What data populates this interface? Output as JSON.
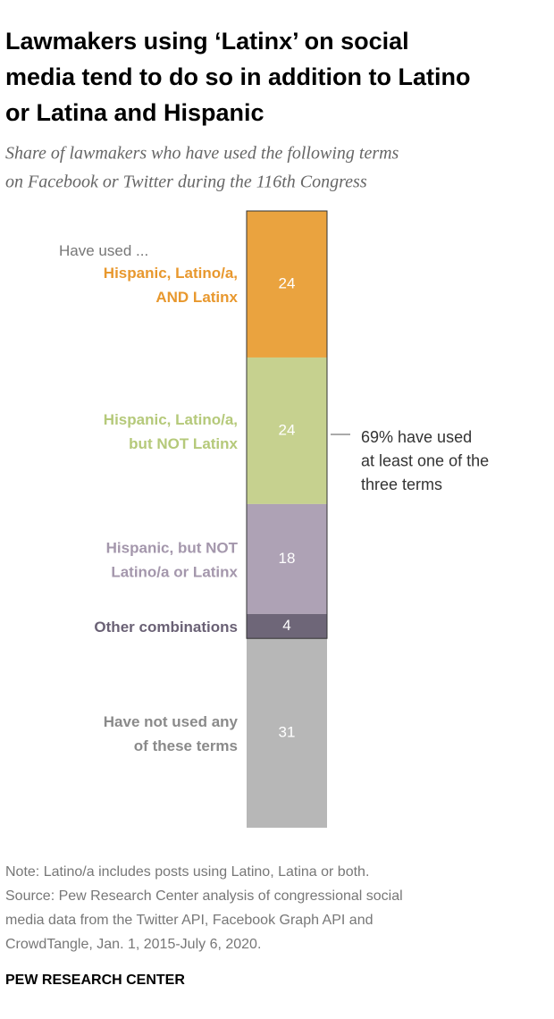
{
  "chart_data": {
    "type": "stacked-bar",
    "title": [
      "Lawmakers using ‘Latinx’ on social",
      "media tend to do so in addition to Latino",
      "or Latina and Hispanic"
    ],
    "subtitle": [
      "Share of lawmakers who have used the following terms",
      "on Facebook or Twitter during the 116th Congress"
    ],
    "header": "Have used ...",
    "ylim": [
      0,
      101
    ],
    "series": [
      {
        "name": [
          "Hispanic, Latino/a,",
          "AND Latinx"
        ],
        "color": "#eaa33f",
        "label_color": "#e8982e",
        "values": [
          24
        ]
      },
      {
        "name": [
          "Hispanic, Latino/a,",
          "but NOT Latinx"
        ],
        "color": "#c6d18f",
        "label_color": "#b5c97a",
        "values": [
          24
        ]
      },
      {
        "name": [
          "Hispanic, but NOT",
          "Latino/a or Latinx"
        ],
        "color": "#aea2b5",
        "label_color": "#a497ac",
        "values": [
          18
        ]
      },
      {
        "name": [
          "Other combinations"
        ],
        "color": "#6e6678",
        "label_color": "#6a6175",
        "values": [
          4
        ]
      },
      {
        "name": [
          "Have not used any",
          "of these terms"
        ],
        "color": "#b7b7b7",
        "label_color": "#8a8a8a",
        "values": [
          31
        ]
      }
    ],
    "annotation": [
      "69% have used",
      "at least one of the",
      "three terms"
    ],
    "notes": [
      "Note: Latino/a includes posts using Latino, Latina or both.",
      "Source: Pew Research Center analysis of congressional social",
      "media data from the Twitter API, Facebook Graph API and",
      "CrowdTangle, Jan. 1, 2015-July 6, 2020."
    ],
    "source": "PEW RESEARCH CENTER"
  }
}
